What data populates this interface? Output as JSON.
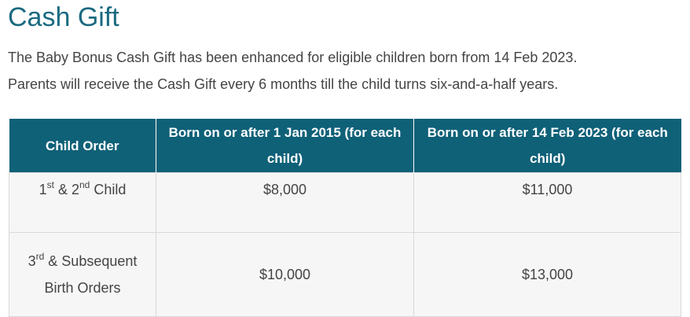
{
  "section": {
    "title": "Cash Gift",
    "intro_line1": "The Baby Bonus Cash Gift has been enhanced for eligible children born from 14 Feb 2023.",
    "intro_line2": "Parents will receive the Cash Gift every 6 months till the child turns six-and-a-half years."
  },
  "table": {
    "headers": [
      "Child Order",
      "Born on or after 1 Jan 2015 (for each child)",
      "Born on or after 14 Feb 2023 (for each child)"
    ],
    "rows": [
      {
        "order_part1": "1",
        "order_sup1": "st",
        "order_mid": " & 2",
        "order_sup2": "nd",
        "order_tail": " Child",
        "amount_2015": "$8,000",
        "amount_2023": "$11,000"
      },
      {
        "order_part1": "3",
        "order_sup1": "rd",
        "order_tail": " & Subsequent Birth Orders",
        "amount_2015": "$10,000",
        "amount_2023": "$13,000"
      }
    ]
  }
}
